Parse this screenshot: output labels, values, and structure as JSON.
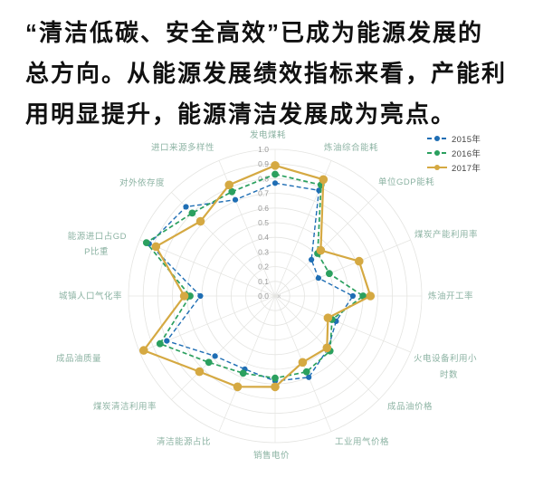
{
  "page": {
    "background": "#ffffff"
  },
  "article": {
    "lines": [
      "“清洁低碳、安全高效”已成为能源发展的",
      "总方向。从能源发展绩效指标来看，产能利",
      "用明显提升，能源清洁发展成为亮点。"
    ]
  },
  "chart_data": {
    "type": "radar",
    "categories": [
      "发电煤耗",
      "炼油综合能耗",
      "单位GDP能耗",
      "煤炭产能利用率",
      "炼油开工率",
      "火电设备利用小时数",
      "成品油价格",
      "工业用气价格",
      "销售电价",
      "清洁能源占比",
      "煤炭清洁利用率",
      "成品油质量",
      "城镇人口气化率",
      "能源进口占GDP比重",
      "对外依存度",
      "进口来源多样性"
    ],
    "series": [
      {
        "name": "2015年",
        "color": "#1f6eb4",
        "style": "dashed",
        "values": [
          0.77,
          0.78,
          0.35,
          0.32,
          0.53,
          0.45,
          0.51,
          0.6,
          0.58,
          0.54,
          0.58,
          0.8,
          0.51,
          0.93,
          0.86,
          0.71
        ]
      },
      {
        "name": "2016年",
        "color": "#2ba05f",
        "style": "dashed",
        "values": [
          0.83,
          0.82,
          0.41,
          0.4,
          0.6,
          0.42,
          0.53,
          0.56,
          0.56,
          0.57,
          0.64,
          0.85,
          0.58,
          0.95,
          0.8,
          0.77
        ]
      },
      {
        "name": "2017年",
        "color": "#d5a942",
        "style": "solid",
        "values": [
          0.89,
          0.86,
          0.44,
          0.62,
          0.65,
          0.39,
          0.5,
          0.49,
          0.62,
          0.67,
          0.73,
          0.97,
          0.62,
          0.88,
          0.72,
          0.82
        ]
      }
    ],
    "radial_ticks": [
      "1.0",
      "0.9",
      "0.8",
      "0.7",
      "0.6",
      "0.5",
      "0.4",
      "0.3",
      "0.2",
      "0.1",
      "0.0"
    ],
    "rlim": [
      0,
      1.0
    ],
    "grid": "circular",
    "legend_position": "top-right",
    "axis_label_color": "#8cb3a3",
    "tick_color": "#999999",
    "grid_color": "#e4e4e1"
  }
}
